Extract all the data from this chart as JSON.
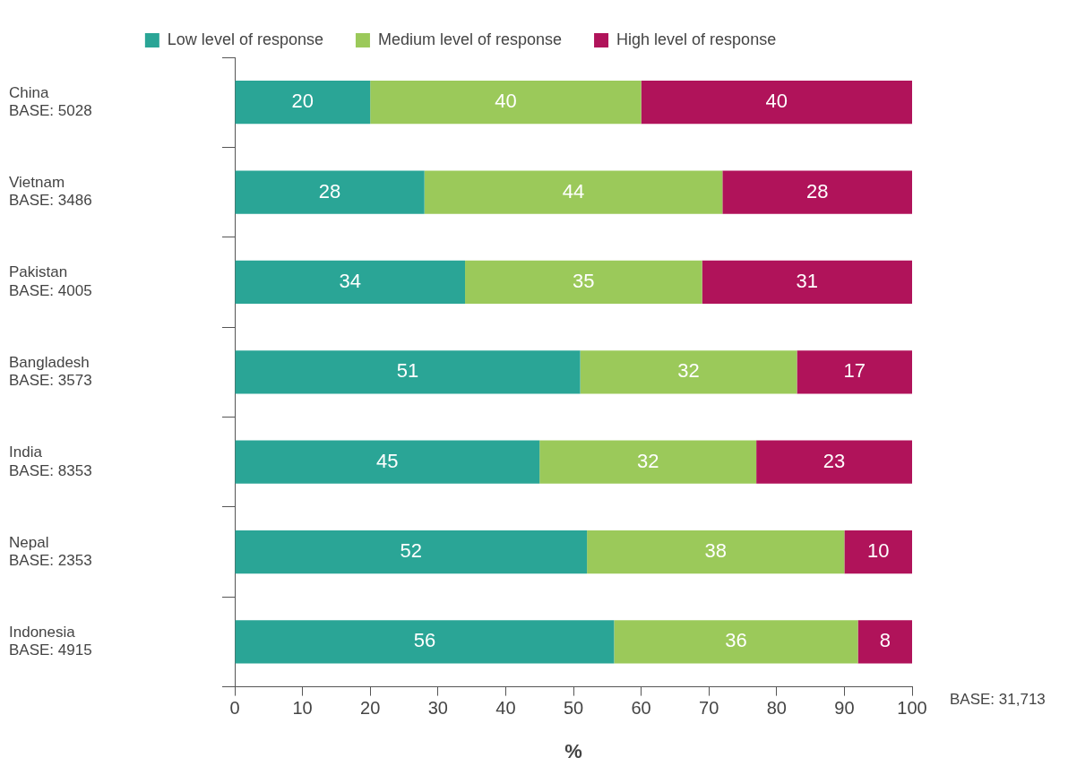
{
  "chart_data": {
    "type": "bar",
    "orientation": "horizontal",
    "stacked": true,
    "categories": [
      "China\nBASE: 5028",
      "Vietnam\nBASE: 3486",
      "Pakistan\nBASE: 4005",
      "Bangladesh\nBASE: 3573",
      "India\nBASE: 8353",
      "Nepal\nBASE: 2353",
      "Indonesia\nBASE: 4915"
    ],
    "series": [
      {
        "name": "Low level of response",
        "color": "#2aa596",
        "values": [
          20,
          28,
          34,
          51,
          45,
          52,
          56
        ]
      },
      {
        "name": "Medium level of response",
        "color": "#9bc95a",
        "values": [
          40,
          44,
          35,
          32,
          32,
          38,
          36
        ]
      },
      {
        "name": "High level of response",
        "color": "#b0135a",
        "values": [
          40,
          28,
          31,
          17,
          23,
          10,
          8
        ]
      }
    ],
    "xlabel": "%",
    "xlim": [
      0,
      100
    ],
    "xticks": [
      0,
      10,
      20,
      30,
      40,
      50,
      60,
      70,
      80,
      90,
      100
    ],
    "annotations": [
      "BASE: 31,713"
    ],
    "data_labels": true,
    "grid": false,
    "legend": "top"
  }
}
